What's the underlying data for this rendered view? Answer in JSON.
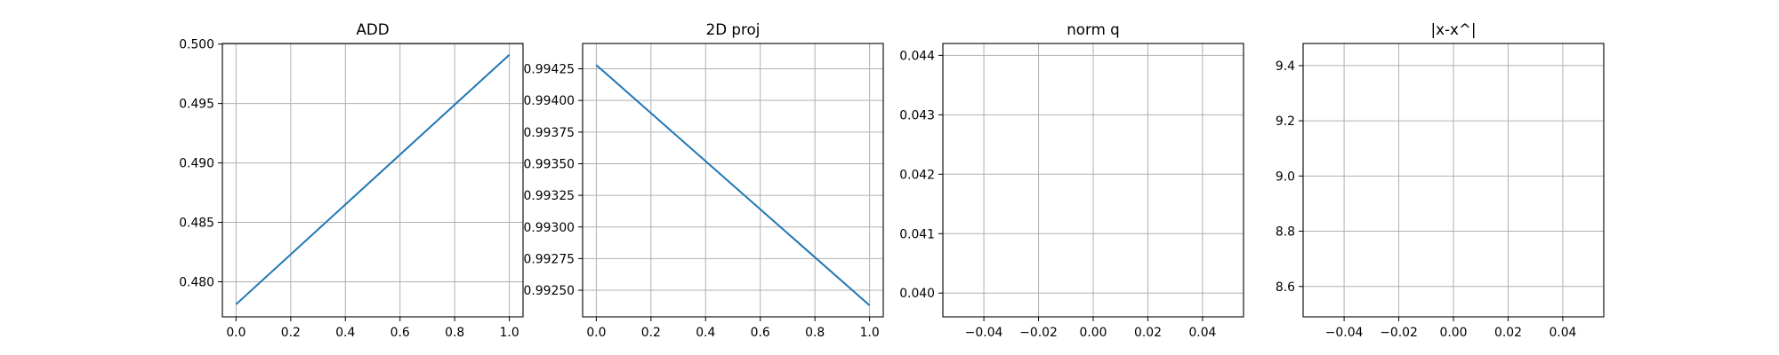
{
  "colors": {
    "line": "#1f77b4",
    "grid": "#b0b0b0",
    "axes": "#000000",
    "background": "#ffffff"
  },
  "chart_data": [
    {
      "type": "line",
      "title": "ADD",
      "grid": true,
      "xlim": [
        -0.05,
        1.05
      ],
      "ylim": [
        0.47705,
        0.50005
      ],
      "xticks": [
        0.0,
        0.2,
        0.4,
        0.6,
        0.8,
        1.0
      ],
      "xtick_labels": [
        "0.0",
        "0.2",
        "0.4",
        "0.6",
        "0.8",
        "1.0"
      ],
      "yticks": [
        0.48,
        0.485,
        0.49,
        0.495,
        0.5
      ],
      "ytick_labels": [
        "0.480",
        "0.485",
        "0.490",
        "0.495",
        "0.500"
      ],
      "series": [
        {
          "x": [
            0,
            1
          ],
          "y": [
            0.4781,
            0.4991
          ]
        }
      ]
    },
    {
      "type": "line",
      "title": "2D proj",
      "grid": true,
      "xlim": [
        -0.05,
        1.05
      ],
      "ylim": [
        0.99229,
        0.99445
      ],
      "xticks": [
        0.0,
        0.2,
        0.4,
        0.6,
        0.8,
        1.0
      ],
      "xtick_labels": [
        "0.0",
        "0.2",
        "0.4",
        "0.6",
        "0.8",
        "1.0"
      ],
      "yticks": [
        0.9925,
        0.99275,
        0.993,
        0.99325,
        0.9935,
        0.99375,
        0.994,
        0.99425
      ],
      "ytick_labels": [
        "0.99250",
        "0.99275",
        "0.99300",
        "0.99325",
        "0.99350",
        "0.99375",
        "0.99400",
        "0.99425"
      ],
      "series": [
        {
          "x": [
            0,
            1
          ],
          "y": [
            0.99428,
            0.99238
          ]
        }
      ]
    },
    {
      "type": "line",
      "title": "norm q",
      "grid": true,
      "xlim": [
        -0.055,
        0.055
      ],
      "ylim": [
        0.0396,
        0.0442
      ],
      "xticks": [
        -0.04,
        -0.02,
        0.0,
        0.02,
        0.04
      ],
      "xtick_labels": [
        "−0.04",
        "−0.02",
        "0.00",
        "0.02",
        "0.04"
      ],
      "yticks": [
        0.04,
        0.041,
        0.042,
        0.043,
        0.044
      ],
      "ytick_labels": [
        "0.040",
        "0.041",
        "0.042",
        "0.043",
        "0.044"
      ],
      "series": []
    },
    {
      "type": "line",
      "title": "|x-x^|",
      "grid": true,
      "xlim": [
        -0.055,
        0.055
      ],
      "ylim": [
        8.49,
        9.48
      ],
      "xticks": [
        -0.04,
        -0.02,
        0.0,
        0.02,
        0.04
      ],
      "xtick_labels": [
        "−0.04",
        "−0.02",
        "0.00",
        "0.02",
        "0.04"
      ],
      "yticks": [
        8.6,
        8.8,
        9.0,
        9.2,
        9.4
      ],
      "ytick_labels": [
        "8.6",
        "8.8",
        "9.0",
        "9.2",
        "9.4"
      ],
      "series": []
    }
  ]
}
